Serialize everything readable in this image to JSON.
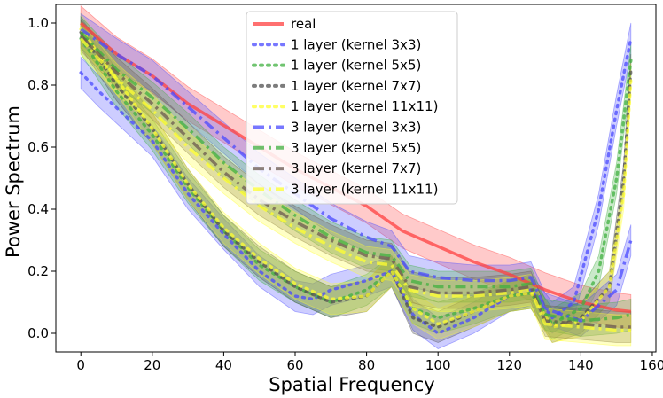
{
  "chart_data": {
    "type": "line",
    "title": "",
    "xlabel": "Spatial Frequency",
    "ylabel": "Power Spectrum",
    "xlim": [
      -7,
      161
    ],
    "ylim": [
      -0.06,
      1.06
    ],
    "xticks": [
      0,
      20,
      40,
      60,
      80,
      100,
      120,
      140,
      160
    ],
    "yticks": [
      0.0,
      0.2,
      0.4,
      0.6,
      0.8,
      1.0
    ],
    "xtick_labels": [
      "0",
      "20",
      "40",
      "60",
      "80",
      "100",
      "120",
      "140",
      "160"
    ],
    "ytick_labels": [
      "0.0",
      "0.2",
      "0.4",
      "0.6",
      "0.8",
      "1.0"
    ],
    "grid": false,
    "legend_position": "top-center",
    "series": [
      {
        "name": "real",
        "color": "#ff4040",
        "style": "solid",
        "band": 0.055,
        "points": [
          [
            0,
            1.0
          ],
          [
            10,
            0.9
          ],
          [
            20,
            0.83
          ],
          [
            30,
            0.74
          ],
          [
            40,
            0.67
          ],
          [
            50,
            0.6
          ],
          [
            60,
            0.53
          ],
          [
            70,
            0.47
          ],
          [
            80,
            0.41
          ],
          [
            90,
            0.33
          ],
          [
            100,
            0.28
          ],
          [
            110,
            0.23
          ],
          [
            120,
            0.19
          ],
          [
            130,
            0.14
          ],
          [
            140,
            0.1
          ],
          [
            150,
            0.075
          ],
          [
            154,
            0.07
          ]
        ]
      },
      {
        "name": "1 layer (kernel 3x3)",
        "color": "#4a4aff",
        "style": "dot",
        "band": 0.05,
        "points": [
          [
            0,
            0.84
          ],
          [
            5,
            0.78
          ],
          [
            20,
            0.62
          ],
          [
            30,
            0.45
          ],
          [
            40,
            0.32
          ],
          [
            50,
            0.2
          ],
          [
            60,
            0.12
          ],
          [
            65,
            0.11
          ],
          [
            70,
            0.14
          ],
          [
            80,
            0.17
          ],
          [
            87,
            0.2
          ],
          [
            93,
            0.06
          ],
          [
            100,
            0.0
          ],
          [
            110,
            0.05
          ],
          [
            120,
            0.12
          ],
          [
            126,
            0.14
          ],
          [
            132,
            0.05
          ],
          [
            138,
            0.1
          ],
          [
            145,
            0.4
          ],
          [
            150,
            0.72
          ],
          [
            154,
            0.95
          ]
        ]
      },
      {
        "name": "1 layer (kernel 5x5)",
        "color": "#40b040",
        "style": "dot",
        "band": 0.05,
        "points": [
          [
            0,
            0.95
          ],
          [
            10,
            0.78
          ],
          [
            20,
            0.64
          ],
          [
            30,
            0.47
          ],
          [
            40,
            0.33
          ],
          [
            50,
            0.22
          ],
          [
            60,
            0.15
          ],
          [
            70,
            0.1
          ],
          [
            80,
            0.14
          ],
          [
            87,
            0.2
          ],
          [
            93,
            0.08
          ],
          [
            100,
            0.05
          ],
          [
            110,
            0.08
          ],
          [
            120,
            0.12
          ],
          [
            126,
            0.13
          ],
          [
            132,
            0.03
          ],
          [
            140,
            0.08
          ],
          [
            145,
            0.2
          ],
          [
            150,
            0.5
          ],
          [
            154,
            0.88
          ]
        ]
      },
      {
        "name": "1 layer (kernel 7x7)",
        "color": "#505050",
        "style": "dot",
        "band": 0.05,
        "points": [
          [
            0,
            0.97
          ],
          [
            10,
            0.8
          ],
          [
            20,
            0.66
          ],
          [
            30,
            0.48
          ],
          [
            40,
            0.33
          ],
          [
            50,
            0.23
          ],
          [
            60,
            0.15
          ],
          [
            70,
            0.1
          ],
          [
            80,
            0.12
          ],
          [
            87,
            0.2
          ],
          [
            93,
            0.05
          ],
          [
            100,
            0.02
          ],
          [
            110,
            0.07
          ],
          [
            120,
            0.12
          ],
          [
            126,
            0.13
          ],
          [
            132,
            0.02
          ],
          [
            140,
            0.05
          ],
          [
            148,
            0.15
          ],
          [
            152,
            0.5
          ],
          [
            154,
            0.85
          ]
        ]
      },
      {
        "name": "1 layer (kernel 11x11)",
        "color": "#ffff30",
        "style": "dot",
        "band": 0.05,
        "points": [
          [
            0,
            0.98
          ],
          [
            10,
            0.82
          ],
          [
            20,
            0.66
          ],
          [
            30,
            0.48
          ],
          [
            40,
            0.34
          ],
          [
            50,
            0.24
          ],
          [
            60,
            0.16
          ],
          [
            70,
            0.11
          ],
          [
            80,
            0.12
          ],
          [
            87,
            0.2
          ],
          [
            93,
            0.08
          ],
          [
            100,
            0.03
          ],
          [
            110,
            0.07
          ],
          [
            120,
            0.12
          ],
          [
            126,
            0.13
          ],
          [
            132,
            0.02
          ],
          [
            140,
            0.04
          ],
          [
            148,
            0.15
          ],
          [
            152,
            0.45
          ],
          [
            154,
            0.82
          ]
        ]
      },
      {
        "name": "3 layer (kernel 3x3)",
        "color": "#4a4aff",
        "style": "dashdot",
        "band": 0.05,
        "points": [
          [
            0,
            0.98
          ],
          [
            10,
            0.9
          ],
          [
            20,
            0.83
          ],
          [
            30,
            0.73
          ],
          [
            40,
            0.63
          ],
          [
            50,
            0.53
          ],
          [
            60,
            0.45
          ],
          [
            70,
            0.37
          ],
          [
            80,
            0.31
          ],
          [
            87,
            0.28
          ],
          [
            92,
            0.2
          ],
          [
            100,
            0.18
          ],
          [
            110,
            0.17
          ],
          [
            120,
            0.17
          ],
          [
            126,
            0.18
          ],
          [
            130,
            0.08
          ],
          [
            140,
            0.04
          ],
          [
            150,
            0.14
          ],
          [
            154,
            0.3
          ]
        ]
      },
      {
        "name": "3 layer (kernel 5x5)",
        "color": "#40b040",
        "style": "dashdot",
        "band": 0.05,
        "points": [
          [
            0,
            0.97
          ],
          [
            10,
            0.85
          ],
          [
            20,
            0.76
          ],
          [
            30,
            0.66
          ],
          [
            40,
            0.55
          ],
          [
            50,
            0.46
          ],
          [
            60,
            0.38
          ],
          [
            70,
            0.31
          ],
          [
            80,
            0.26
          ],
          [
            87,
            0.25
          ],
          [
            92,
            0.17
          ],
          [
            100,
            0.15
          ],
          [
            110,
            0.15
          ],
          [
            120,
            0.15
          ],
          [
            126,
            0.16
          ],
          [
            130,
            0.06
          ],
          [
            140,
            0.04
          ],
          [
            150,
            0.05
          ],
          [
            154,
            0.06
          ]
        ]
      },
      {
        "name": "3 layer (kernel 7x7)",
        "color": "#6b5a50",
        "style": "dashdot",
        "band": 0.05,
        "points": [
          [
            0,
            0.96
          ],
          [
            10,
            0.84
          ],
          [
            20,
            0.74
          ],
          [
            30,
            0.63
          ],
          [
            40,
            0.52
          ],
          [
            50,
            0.43
          ],
          [
            60,
            0.36
          ],
          [
            70,
            0.3
          ],
          [
            80,
            0.25
          ],
          [
            87,
            0.24
          ],
          [
            92,
            0.15
          ],
          [
            100,
            0.13
          ],
          [
            110,
            0.13
          ],
          [
            120,
            0.14
          ],
          [
            126,
            0.15
          ],
          [
            130,
            0.04
          ],
          [
            140,
            0.03
          ],
          [
            150,
            0.02
          ],
          [
            154,
            0.02
          ]
        ]
      },
      {
        "name": "3 layer (kernel 11x11)",
        "color": "#ffff30",
        "style": "dashdot",
        "band": 0.05,
        "points": [
          [
            0,
            0.95
          ],
          [
            10,
            0.82
          ],
          [
            20,
            0.72
          ],
          [
            30,
            0.6
          ],
          [
            40,
            0.5
          ],
          [
            50,
            0.41
          ],
          [
            60,
            0.34
          ],
          [
            70,
            0.28
          ],
          [
            80,
            0.23
          ],
          [
            87,
            0.22
          ],
          [
            92,
            0.14
          ],
          [
            100,
            0.12
          ],
          [
            110,
            0.12
          ],
          [
            120,
            0.13
          ],
          [
            126,
            0.14
          ],
          [
            130,
            0.03
          ],
          [
            140,
            0.02
          ],
          [
            150,
            0.01
          ],
          [
            154,
            0.01
          ]
        ]
      }
    ]
  }
}
